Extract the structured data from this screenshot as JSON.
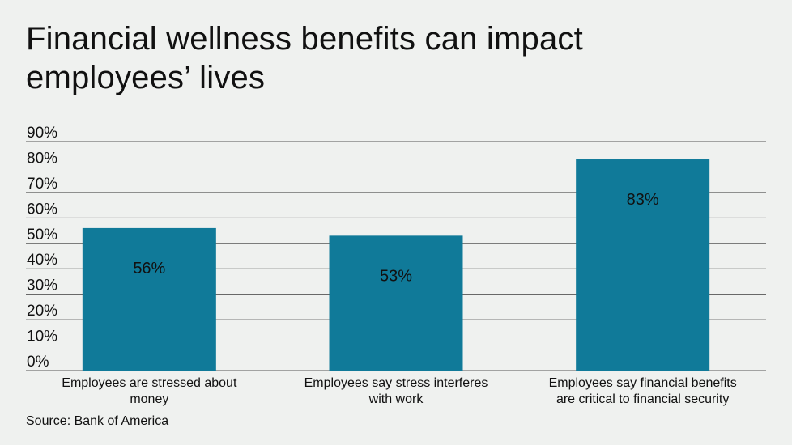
{
  "title": "Financial wellness benefits can impact employees’ lives",
  "source": "Source: Bank of America",
  "colors": {
    "bar": "#107a99",
    "grid": "#555555",
    "background": "#eff1ef"
  },
  "chart_data": {
    "type": "bar",
    "title": "Financial wellness benefits can impact employees’ lives",
    "xlabel": "",
    "ylabel": "",
    "ylim": [
      0,
      90
    ],
    "yticks": [
      0,
      10,
      20,
      30,
      40,
      50,
      60,
      70,
      80,
      90
    ],
    "ytick_labels": [
      "0%",
      "10%",
      "20%",
      "30%",
      "40%",
      "50%",
      "60%",
      "70%",
      "80%",
      "90%"
    ],
    "grid": true,
    "legend": "none",
    "categories": [
      [
        "Employees are stressed about",
        "money"
      ],
      [
        "Employees say stress interferes",
        "with work"
      ],
      [
        "Employees say financial benefits",
        "are critical to financial security"
      ]
    ],
    "values": [
      56,
      53,
      83
    ],
    "data_labels": [
      "56%",
      "53%",
      "83%"
    ]
  }
}
